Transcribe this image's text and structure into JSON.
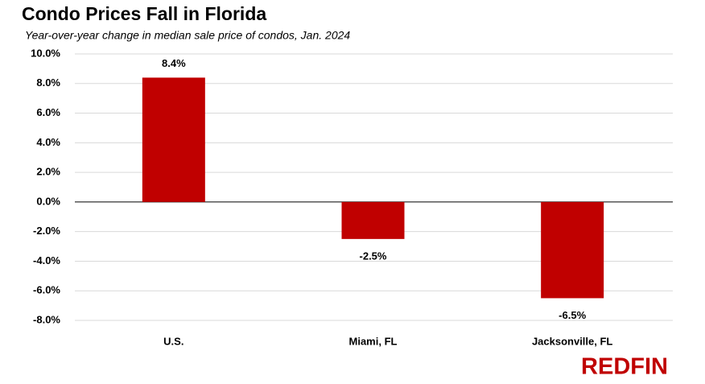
{
  "chart_data": {
    "type": "bar",
    "title": "Condo Prices Fall in Florida",
    "subtitle": "Year-over-year change in median sale price of condos, Jan. 2024",
    "categories": [
      "U.S.",
      "Miami, FL",
      "Jacksonville, FL"
    ],
    "values": [
      8.4,
      -2.5,
      -6.5
    ],
    "value_labels": [
      "8.4%",
      "-2.5%",
      "-6.5%"
    ],
    "color": "#c00000",
    "ylim": [
      -8,
      10
    ],
    "yticks": [
      {
        "value": 10,
        "label": "10.0%"
      },
      {
        "value": 8,
        "label": "8.0%"
      },
      {
        "value": 6,
        "label": "6.0%"
      },
      {
        "value": 4,
        "label": "4.0%"
      },
      {
        "value": 2,
        "label": "2.0%"
      },
      {
        "value": 0,
        "label": "0.0%"
      },
      {
        "value": -2,
        "label": "-2.0%"
      },
      {
        "value": -4,
        "label": "-4.0%"
      },
      {
        "value": -6,
        "label": "-6.0%"
      },
      {
        "value": -8,
        "label": "-8.0%"
      }
    ],
    "grid": true,
    "logo": "REDFIN"
  }
}
